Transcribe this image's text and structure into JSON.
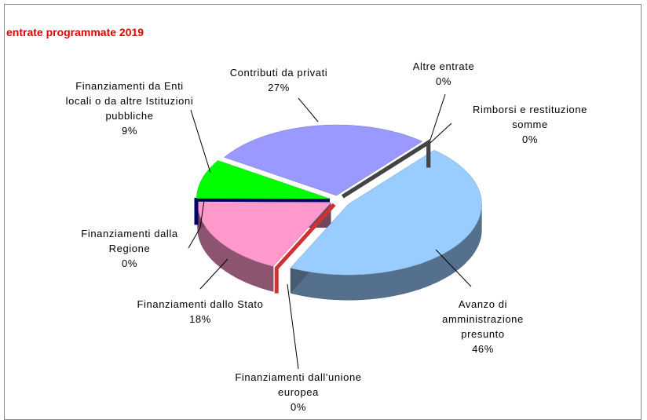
{
  "chart_data": {
    "type": "pie3d",
    "title": "entrate programmate 2019",
    "categories": [
      "Avanzo di amministrazione presunto",
      "Finanziamenti dall'unione europea",
      "Finanziamenti dallo Stato",
      "Finanziamenti dalla Regione",
      "Finanziamenti da Enti locali o da altre Istituzioni pubbliche",
      "Contributi da privati",
      "Altre entrate",
      "Rimborsi e restituzione somme"
    ],
    "values": [
      46,
      0,
      18,
      0,
      9,
      27,
      0,
      0
    ],
    "value_labels": [
      "46%",
      "0%",
      "18%",
      "0%",
      "9%",
      "27%",
      "0%",
      "0%"
    ],
    "colors": [
      "#99ccff",
      "#cc3333",
      "#ff99cc",
      "#000066",
      "#00ff00",
      "#9999ff",
      "#333399",
      "#444444"
    ]
  }
}
